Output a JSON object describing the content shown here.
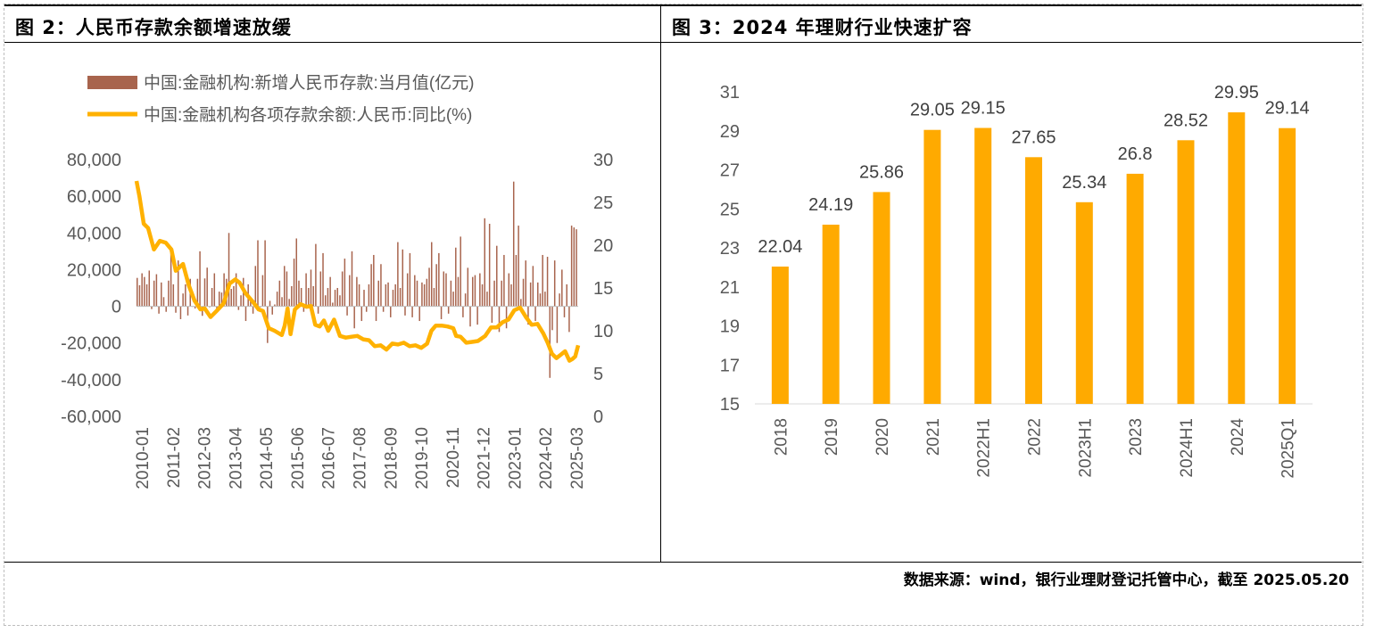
{
  "source_note": "数据来源：wind，银行业理财登记托管中心，截至 2025.05.20",
  "colors": {
    "bar_brown": "#a8644d",
    "line_orange": "#ffb100",
    "bar_orange": "#ffaa00",
    "axis_text": "#595959"
  },
  "chart_data": [
    {
      "type": "bar+line",
      "title": "图 2：人民币存款余额增速放缓",
      "legend": [
        "中国:金融机构:新增人民币存款:当月值(亿元)",
        "中国:金融机构各项存款余额:人民币:同比(%)"
      ],
      "legend_position": "top",
      "x_tick_labels": [
        "2010-01",
        "2011-02",
        "2012-03",
        "2013-04",
        "2014-05",
        "2015-06",
        "2016-07",
        "2017-08",
        "2018-09",
        "2019-10",
        "2020-11",
        "2021-12",
        "2023-01",
        "2024-02",
        "2025-03"
      ],
      "y_left": {
        "min": -60000,
        "max": 80000,
        "ticks": [
          "80,000",
          "60,000",
          "40,000",
          "20,000",
          "0",
          "-20,000",
          "-40,000",
          "-60,000"
        ]
      },
      "y_right": {
        "min": 0,
        "max": 30,
        "ticks": [
          "30",
          "25",
          "20",
          "15",
          "10",
          "5",
          "0"
        ]
      },
      "series": [
        {
          "name": "中国:金融机构:新增人民币存款:当月值(亿元)",
          "kind": "bar",
          "axis": "left",
          "annual_pattern_anchors": {
            "2010": [
              15500,
              11500,
              18000,
              16000,
              12000,
              19500,
              -1500,
              14000,
              17500,
              -4000,
              13000,
              5000
            ],
            "2011": [
              -3000,
              14000,
              29000,
              12000,
              -3500,
              25000,
              -7000,
              7000,
              12000,
              -5000,
              15000,
              -300
            ],
            "2012": [
              -1200,
              15000,
              30000,
              -5200,
              15200,
              21100,
              -500,
              10000,
              18000,
              -3200,
              8000,
              7500
            ],
            "2013": [
              18000,
              15000,
              40000,
              9500,
              11000,
              18000,
              -2000,
              6000,
              15500,
              -8000,
              12000,
              5000
            ],
            "2014": [
              -4000,
              22000,
              36000,
              -500,
              17000,
              36000,
              -20000,
              3000,
              -4500,
              1000,
              8000,
              14000
            ],
            "2015": [
              5000,
              22000,
              19000,
              4000,
              11000,
              26000,
              37000,
              14000,
              10000,
              -3000,
              18000,
              10000
            ],
            "2016": [
              20000,
              11000,
              34000,
              -4000,
              19000,
              29000,
              6000,
              10000,
              16000,
              2000,
              9000,
              10000
            ],
            "2017": [
              6000,
              19000,
              26000,
              -5000,
              17000,
              30000,
              -12000,
              16000,
              12000,
              -8000,
              9000,
              -3000
            ],
            "2018": [
              12000,
              23000,
              28000,
              -8000,
              14000,
              23000,
              -3000,
              12000,
              13000,
              -6000,
              9000,
              12000
            ],
            "2019": [
              35000,
              10000,
              31000,
              -5000,
              18000,
              29000,
              -6000,
              17000,
              14000,
              -8000,
              13000,
              12000
            ],
            "2020": [
              15000,
              21000,
              35000,
              10000,
              23000,
              29000,
              -7000,
              19000,
              18000,
              -4000,
              14000,
              8000
            ],
            "2021": [
              32000,
              16000,
              38000,
              -6000,
              7000,
              21000,
              -11000,
              16000,
              17000,
              -10000,
              18000,
              12000
            ],
            "2022": [
              48000,
              8000,
              45000,
              -9000,
              14000,
              33000,
              -14000,
              14000,
              28000,
              -12000,
              18000,
              12000
            ],
            "2023": [
              68000,
              28000,
              44000,
              4000,
              15000,
              25000,
              -10000,
              13000,
              22000,
              -8000,
              13000,
              7000
            ],
            "2024": [
              28000,
              8000,
              27000,
              -39000,
              -13000,
              25000,
              -20000,
              7000,
              20000,
              -6000,
              12000,
              -14000
            ],
            "2025": [
              44000,
              43000,
              42000
            ]
          }
        },
        {
          "name": "中国:金融机构各项存款余额:人民币:同比(%)",
          "kind": "line",
          "axis": "right",
          "anchors": [
            [
              2010.0,
              27.5
            ],
            [
              2010.1,
              25.7
            ],
            [
              2010.25,
              22.5
            ],
            [
              2010.4,
              22.0
            ],
            [
              2010.6,
              19.5
            ],
            [
              2010.8,
              20.5
            ],
            [
              2011.0,
              20.3
            ],
            [
              2011.2,
              19.5
            ],
            [
              2011.35,
              17.0
            ],
            [
              2011.6,
              17.8
            ],
            [
              2011.8,
              15.3
            ],
            [
              2012.0,
              13.5
            ],
            [
              2012.2,
              12.5
            ],
            [
              2012.35,
              12.6
            ],
            [
              2012.55,
              11.6
            ],
            [
              2012.75,
              12.3
            ],
            [
              2013.0,
              13.2
            ],
            [
              2013.2,
              15.5
            ],
            [
              2013.4,
              16.0
            ],
            [
              2013.55,
              15.6
            ],
            [
              2013.75,
              14.4
            ],
            [
              2014.0,
              13.4
            ],
            [
              2014.2,
              12.5
            ],
            [
              2014.35,
              12.3
            ],
            [
              2014.55,
              10.3
            ],
            [
              2014.75,
              10.0
            ],
            [
              2015.0,
              9.5
            ],
            [
              2015.1,
              10.6
            ],
            [
              2015.2,
              12.6
            ],
            [
              2015.3,
              9.6
            ],
            [
              2015.45,
              12.5
            ],
            [
              2015.65,
              13.1
            ],
            [
              2015.85,
              12.8
            ],
            [
              2016.0,
              12.9
            ],
            [
              2016.15,
              10.7
            ],
            [
              2016.3,
              10.5
            ],
            [
              2016.45,
              11.2
            ],
            [
              2016.6,
              10.0
            ],
            [
              2016.8,
              11.3
            ],
            [
              2017.0,
              9.4
            ],
            [
              2017.2,
              9.2
            ],
            [
              2017.4,
              9.3
            ],
            [
              2017.6,
              9.4
            ],
            [
              2017.8,
              9.0
            ],
            [
              2018.0,
              8.9
            ],
            [
              2018.2,
              8.2
            ],
            [
              2018.4,
              8.3
            ],
            [
              2018.6,
              7.8
            ],
            [
              2018.8,
              8.5
            ],
            [
              2019.0,
              8.4
            ],
            [
              2019.2,
              8.6
            ],
            [
              2019.4,
              8.2
            ],
            [
              2019.6,
              8.3
            ],
            [
              2019.8,
              8.0
            ],
            [
              2020.0,
              8.5
            ],
            [
              2020.15,
              10.0
            ],
            [
              2020.3,
              10.6
            ],
            [
              2020.5,
              10.6
            ],
            [
              2020.7,
              10.5
            ],
            [
              2020.9,
              10.3
            ],
            [
              2021.0,
              9.4
            ],
            [
              2021.15,
              9.3
            ],
            [
              2021.35,
              8.6
            ],
            [
              2021.55,
              8.7
            ],
            [
              2021.75,
              8.8
            ],
            [
              2022.0,
              9.4
            ],
            [
              2022.2,
              10.4
            ],
            [
              2022.4,
              10.4
            ],
            [
              2022.6,
              11.0
            ],
            [
              2022.8,
              11.3
            ],
            [
              2023.0,
              12.4
            ],
            [
              2023.2,
              12.7
            ],
            [
              2023.4,
              11.6
            ],
            [
              2023.6,
              10.7
            ],
            [
              2023.8,
              10.8
            ],
            [
              2024.0,
              9.7
            ],
            [
              2024.15,
              8.6
            ],
            [
              2024.3,
              7.3
            ],
            [
              2024.45,
              6.8
            ],
            [
              2024.6,
              7.2
            ],
            [
              2024.75,
              7.6
            ],
            [
              2024.9,
              6.5
            ],
            [
              2025.0,
              6.7
            ],
            [
              2025.1,
              7.0
            ],
            [
              2025.2,
              8.3
            ]
          ]
        }
      ]
    },
    {
      "type": "bar",
      "title": "图 3：2024 年理财行业快速扩容",
      "categories": [
        "2018",
        "2019",
        "2020",
        "2021",
        "2022H1",
        "2022",
        "2023H1",
        "2023",
        "2024H1",
        "2024",
        "2025Q1"
      ],
      "values": [
        22.04,
        24.19,
        25.86,
        29.05,
        29.15,
        27.65,
        25.34,
        26.8,
        28.52,
        29.95,
        29.14
      ],
      "value_labels": [
        "22.04",
        "24.19",
        "25.86",
        "29.05",
        "29.15",
        "27.65",
        "25.34",
        "26.8",
        "28.52",
        "29.95",
        "29.14"
      ],
      "ylim": [
        15,
        31
      ],
      "y_ticks": [
        "31",
        "29",
        "27",
        "25",
        "23",
        "21",
        "19",
        "17",
        "15"
      ],
      "grid": false
    }
  ]
}
